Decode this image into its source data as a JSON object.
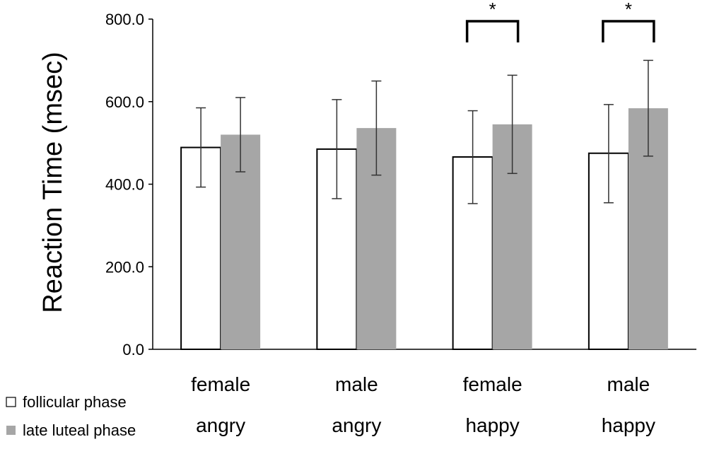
{
  "chart_data": {
    "type": "bar",
    "title": "",
    "xlabel": "",
    "ylabel": "Reaction Time  (msec)",
    "ylim": [
      0,
      800
    ],
    "yticks": [
      0,
      200,
      400,
      600,
      800
    ],
    "ytick_labels": [
      "0.0",
      "200.0",
      "400.0",
      "600.0",
      "800.0"
    ],
    "grid": false,
    "legend_position": "bottom-left",
    "categories": [
      {
        "line1": "female",
        "line2": "angry"
      },
      {
        "line1": "male",
        "line2": "angry"
      },
      {
        "line1": "female",
        "line2": "happy"
      },
      {
        "line1": "male",
        "line2": "happy"
      }
    ],
    "series": [
      {
        "name": "follicular phase",
        "color": "#ffffff",
        "values": [
          489,
          485,
          466,
          475
        ],
        "err_low": [
          393,
          365,
          353,
          355
        ],
        "err_high": [
          585,
          605,
          578,
          593
        ]
      },
      {
        "name": "late luteal phase",
        "color": "#a6a6a6",
        "values": [
          520,
          536,
          545,
          584
        ],
        "err_low": [
          430,
          422,
          426,
          468
        ],
        "err_high": [
          610,
          650,
          664,
          700
        ]
      }
    ],
    "significance": [
      {
        "category_index": 2,
        "label": "*"
      },
      {
        "category_index": 3,
        "label": "*"
      }
    ]
  }
}
